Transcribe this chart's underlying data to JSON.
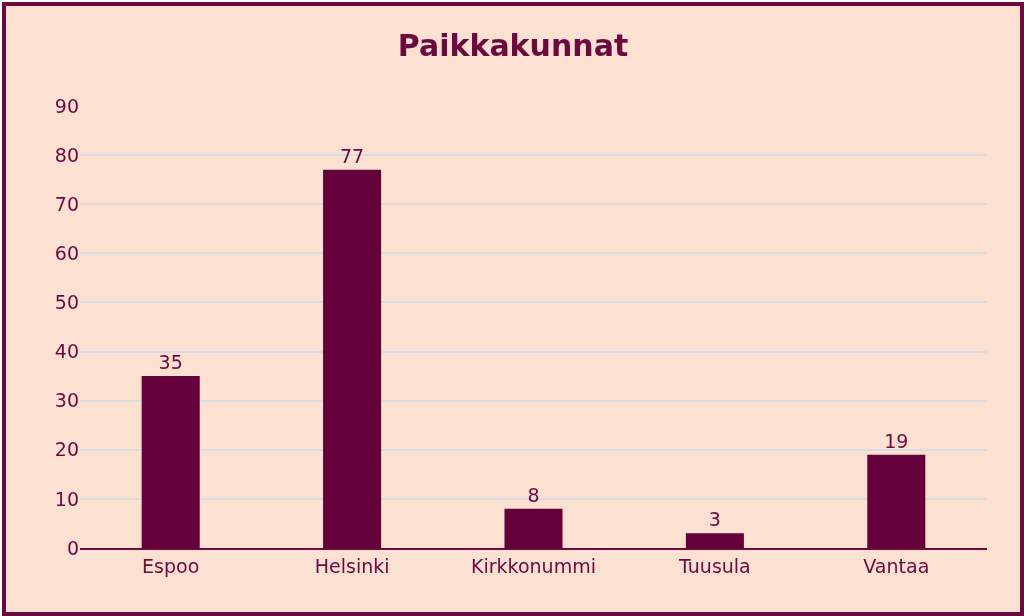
{
  "chart_data": {
    "type": "bar",
    "title": "Paikkakunnat",
    "categories": [
      "Espoo",
      "Helsinki",
      "Kirkkonummi",
      "Tuusula",
      "Vantaa"
    ],
    "values": [
      35,
      77,
      8,
      3,
      19
    ],
    "color": "#64003a",
    "ylim": [
      0,
      90
    ],
    "yticks": [
      0,
      10,
      20,
      30,
      40,
      50,
      60,
      70,
      80,
      90
    ],
    "grid": true,
    "data_labels": true
  }
}
